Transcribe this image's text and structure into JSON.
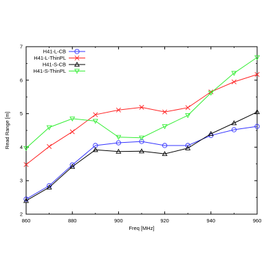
{
  "chart_data": {
    "type": "line",
    "title": "",
    "xlabel": "Freq [MHz]",
    "ylabel": "Read Range [m]",
    "xlim": [
      860,
      960
    ],
    "ylim": [
      2,
      7
    ],
    "xticks": [
      "860",
      "880",
      "900",
      "920",
      "940",
      "960"
    ],
    "yticks": [
      "2",
      "3",
      "4",
      "5",
      "6",
      "7"
    ],
    "grid": false,
    "legend_position": "top-left",
    "x": [
      860,
      870,
      880,
      890,
      900,
      910,
      920,
      930,
      940,
      950,
      960
    ],
    "series": [
      {
        "name": "H41-L-CB",
        "color": "#3333ff",
        "marker": "circle",
        "values": [
          2.45,
          2.85,
          3.47,
          4.05,
          4.13,
          4.17,
          4.05,
          4.05,
          4.35,
          4.52,
          4.62
        ]
      },
      {
        "name": "H41-L-ThinPL",
        "color": "#ff2020",
        "marker": "x",
        "values": [
          3.48,
          4.02,
          4.46,
          4.97,
          5.11,
          5.19,
          5.05,
          5.18,
          5.65,
          5.95,
          6.17
        ]
      },
      {
        "name": "H41-S-CB",
        "color": "#000000",
        "marker": "triangle-up",
        "values": [
          2.4,
          2.8,
          3.42,
          3.92,
          3.87,
          3.88,
          3.8,
          3.97,
          4.4,
          4.72,
          5.05
        ]
      },
      {
        "name": "H41-S-ThinPL",
        "color": "#33ee33",
        "marker": "triangle-down",
        "values": [
          3.97,
          4.59,
          4.85,
          4.78,
          4.3,
          4.28,
          4.62,
          4.95,
          5.62,
          6.21,
          6.68
        ]
      }
    ]
  }
}
